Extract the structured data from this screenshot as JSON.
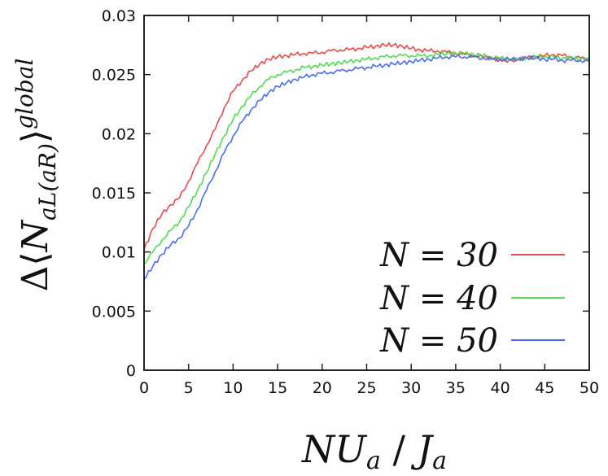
{
  "chart_data": {
    "type": "line",
    "title": "",
    "xlabel": "NU_a / J_a",
    "ylabel": "Δ⟨N_aL(aR)⟩^global",
    "xlim": [
      0,
      50
    ],
    "ylim": [
      0,
      0.03
    ],
    "x_ticks": [
      "0",
      "5",
      "10",
      "15",
      "20",
      "25",
      "30",
      "35",
      "40",
      "45",
      "50"
    ],
    "y_ticks": [
      "0",
      "0.005",
      "0.01",
      "0.015",
      "0.02",
      "0.025",
      "0.03"
    ],
    "grid": false,
    "legend_position": "bottom-right",
    "x": [
      0,
      1,
      2,
      3,
      4,
      5,
      6,
      7,
      8,
      9,
      10,
      11,
      12,
      13,
      14,
      15,
      16,
      17,
      18,
      19,
      20,
      21,
      22,
      23,
      24,
      25,
      26,
      27,
      28,
      29,
      30,
      31,
      32,
      33,
      34,
      35,
      36,
      37,
      38,
      39,
      40,
      41,
      42,
      43,
      44,
      45,
      46,
      47,
      48,
      49,
      50
    ],
    "series": [
      {
        "name": "N = 30",
        "color": "#e84a4a",
        "values": [
          0.0102,
          0.012,
          0.0132,
          0.014,
          0.0146,
          0.016,
          0.0175,
          0.019,
          0.0204,
          0.0222,
          0.0236,
          0.0245,
          0.0253,
          0.0259,
          0.0263,
          0.0265,
          0.0266,
          0.0267,
          0.0268,
          0.0268,
          0.0269,
          0.027,
          0.0271,
          0.0271,
          0.0272,
          0.0273,
          0.0274,
          0.0275,
          0.0275,
          0.0274,
          0.0272,
          0.0271,
          0.027,
          0.027,
          0.0269,
          0.0268,
          0.0267,
          0.0266,
          0.0265,
          0.0264,
          0.0262,
          0.0262,
          0.0263,
          0.0264,
          0.0265,
          0.0266,
          0.0267,
          0.0266,
          0.0265,
          0.0264,
          0.0263
        ]
      },
      {
        "name": "N = 40",
        "color": "#4fdc4f",
        "values": [
          0.009,
          0.01,
          0.011,
          0.0118,
          0.0126,
          0.0138,
          0.0152,
          0.0167,
          0.0183,
          0.0198,
          0.0212,
          0.0223,
          0.0232,
          0.024,
          0.0246,
          0.025,
          0.0252,
          0.0254,
          0.0256,
          0.0257,
          0.0258,
          0.0259,
          0.026,
          0.0261,
          0.0262,
          0.0263,
          0.0264,
          0.0265,
          0.0266,
          0.0266,
          0.0266,
          0.0266,
          0.0266,
          0.0267,
          0.0268,
          0.0268,
          0.0268,
          0.0267,
          0.0266,
          0.0265,
          0.0264,
          0.0263,
          0.0263,
          0.0264,
          0.0265,
          0.0265,
          0.0265,
          0.0264,
          0.0264,
          0.0263,
          0.0263
        ]
      },
      {
        "name": "N = 50",
        "color": "#4a6cf0",
        "values": [
          0.0077,
          0.0088,
          0.0098,
          0.0106,
          0.0112,
          0.0122,
          0.0136,
          0.0152,
          0.0168,
          0.0184,
          0.0198,
          0.021,
          0.022,
          0.0228,
          0.0235,
          0.024,
          0.0243,
          0.0246,
          0.0248,
          0.025,
          0.0251,
          0.0252,
          0.0253,
          0.0254,
          0.0255,
          0.0256,
          0.0257,
          0.0258,
          0.0259,
          0.026,
          0.0261,
          0.0262,
          0.0263,
          0.0264,
          0.0265,
          0.0265,
          0.0265,
          0.0265,
          0.0264,
          0.0263,
          0.0263,
          0.0263,
          0.0263,
          0.0264,
          0.0264,
          0.0263,
          0.0263,
          0.0262,
          0.0262,
          0.0262,
          0.0261
        ]
      }
    ]
  }
}
